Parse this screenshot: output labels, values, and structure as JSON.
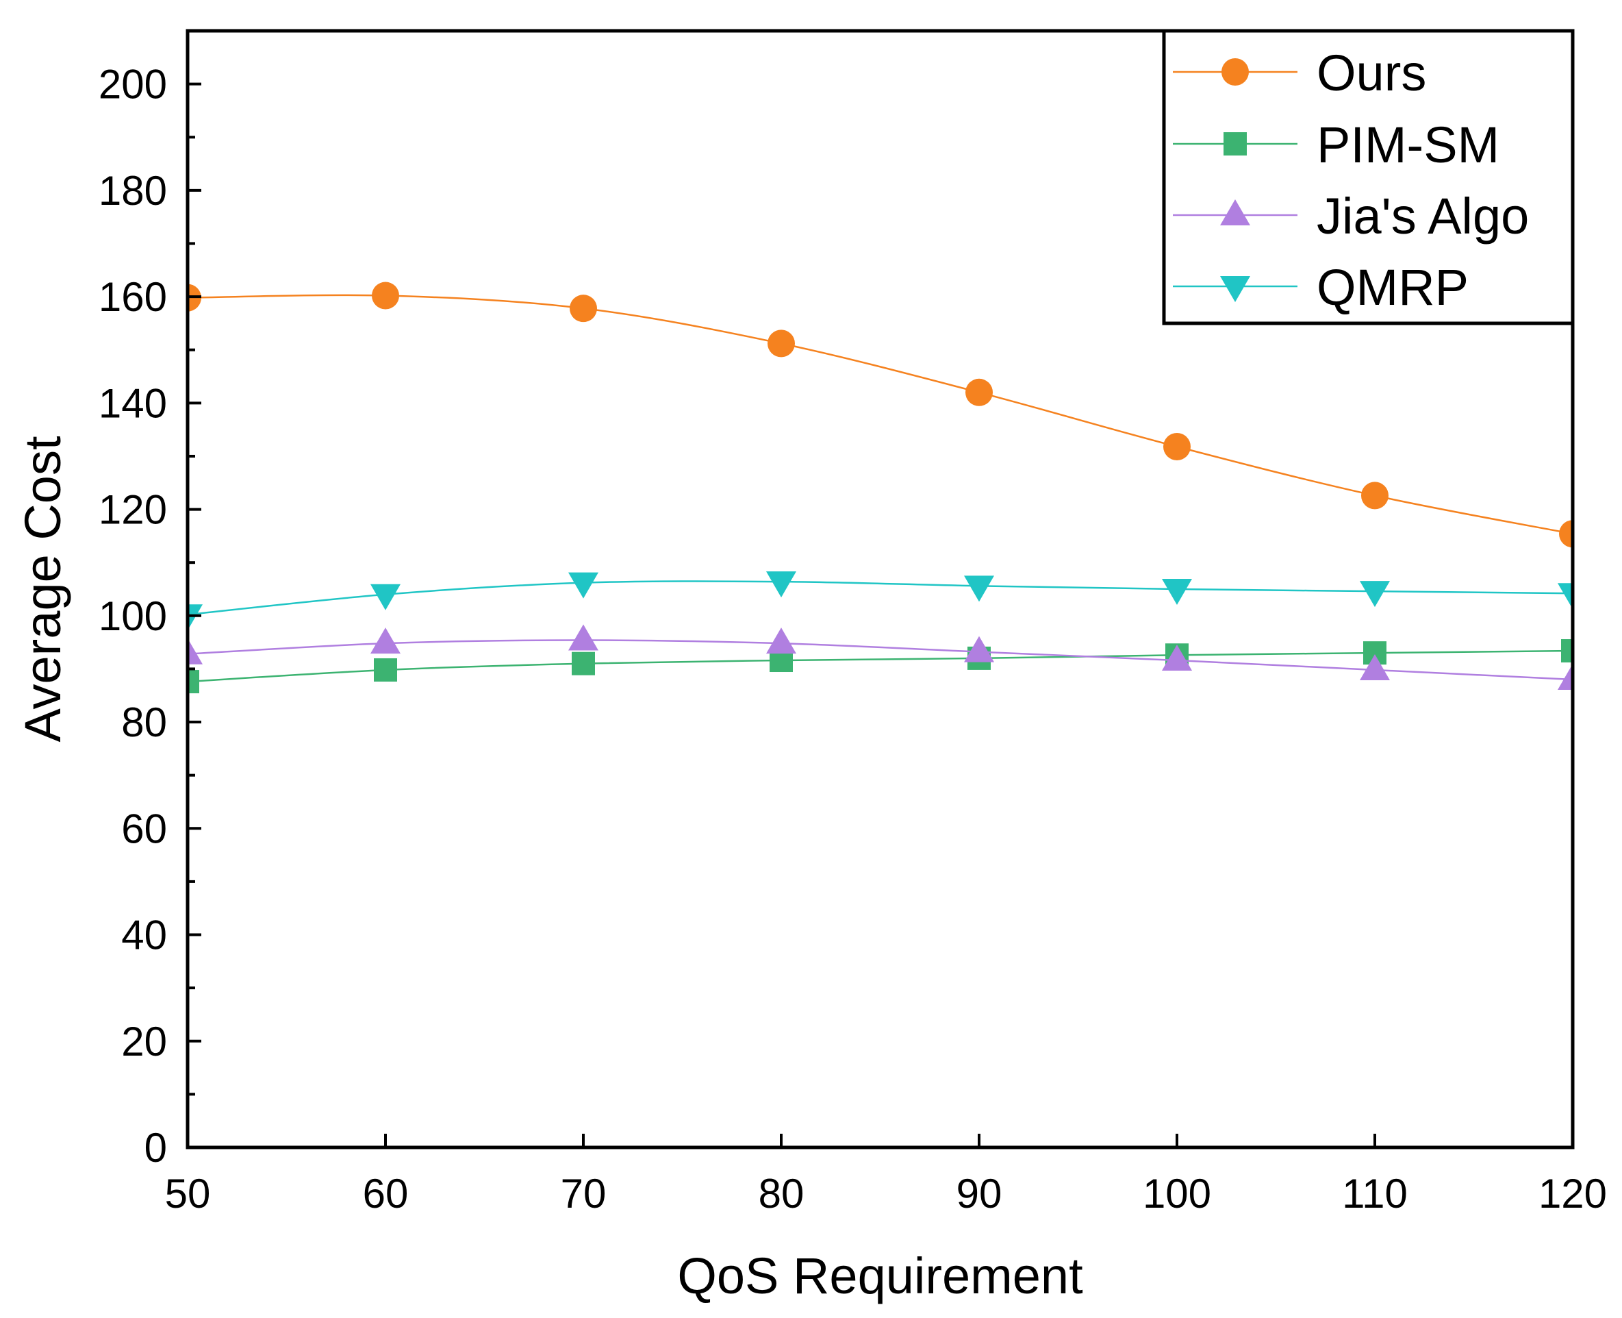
{
  "chart_data": {
    "type": "line",
    "title": "",
    "xlabel": "QoS Requirement",
    "ylabel": "Average Cost",
    "xlim": [
      50,
      120
    ],
    "ylim": [
      0,
      210
    ],
    "x": [
      50,
      60,
      70,
      80,
      90,
      100,
      110,
      120
    ],
    "xticks": [
      50,
      60,
      70,
      80,
      90,
      100,
      110,
      120
    ],
    "yticks": [
      0,
      20,
      40,
      60,
      80,
      100,
      120,
      140,
      160,
      180,
      200
    ],
    "xtick_labels": [
      "50",
      "60",
      "70",
      "80",
      "90",
      "100",
      "110",
      "120"
    ],
    "ytick_labels": [
      "0",
      "20",
      "40",
      "60",
      "80",
      "100",
      "120",
      "140",
      "160",
      "180",
      "200"
    ],
    "legend_position": "top-right",
    "grid": false,
    "series": [
      {
        "name": "Ours",
        "marker": "circle",
        "color": "#F5821F",
        "values": [
          159.8,
          160.2,
          157.8,
          151.2,
          142.0,
          131.8,
          122.6,
          115.4
        ]
      },
      {
        "name": "PIM-SM",
        "marker": "square",
        "color": "#3CB371",
        "values": [
          87.6,
          89.8,
          91.0,
          91.6,
          92.0,
          92.6,
          93.0,
          93.4
        ]
      },
      {
        "name": "Jia's Algo",
        "marker": "triangle-up",
        "color": "#B07FE0",
        "values": [
          92.8,
          94.8,
          95.4,
          94.8,
          93.2,
          91.6,
          89.8,
          88.0
        ]
      },
      {
        "name": "QMRP",
        "marker": "triangle-down",
        "color": "#20C5C5",
        "values": [
          100.2,
          104.0,
          106.2,
          106.4,
          105.6,
          105.0,
          104.6,
          104.2
        ]
      }
    ]
  }
}
